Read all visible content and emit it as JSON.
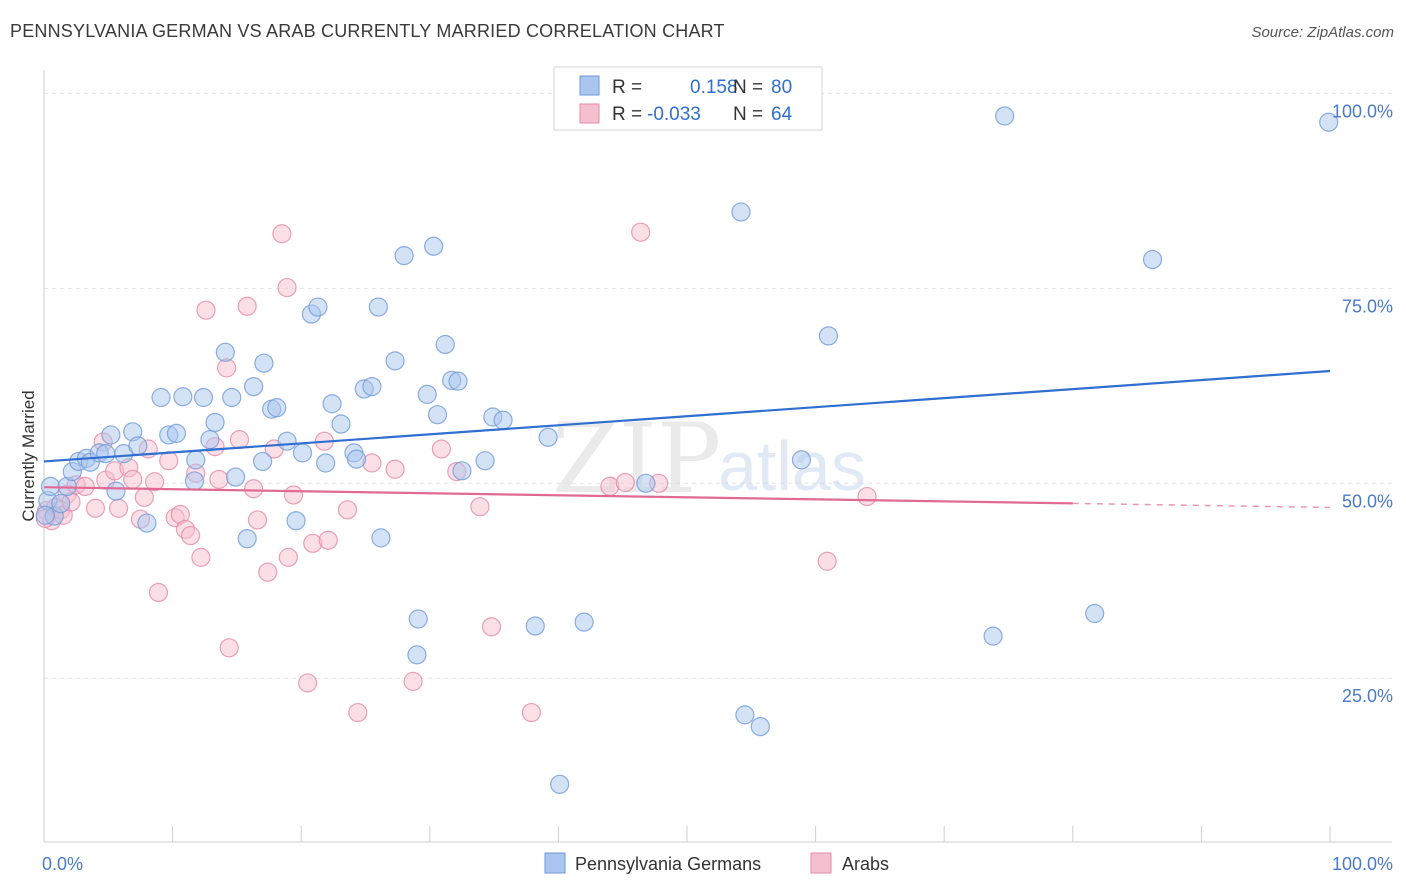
{
  "title": "PENNSYLVANIA GERMAN VS ARAB CURRENTLY MARRIED CORRELATION CHART",
  "source": "Source: ZipAtlas.com",
  "watermark": {
    "zip": "ZIP",
    "atlas": "atlas"
  },
  "colors": {
    "blue_fill": "#a9c6ee",
    "blue_stroke": "#6f9ad9",
    "blue_line": "#2f6fd1",
    "pink_fill": "#f6bfd0",
    "pink_stroke": "#e58aa8",
    "pink_line": "#e06a93",
    "grid": "#e3e3e3",
    "axis_text": "#4a7ac8"
  },
  "stats": {
    "r_label": "R =",
    "n_label": "N =",
    "blue": {
      "r": "0.158",
      "n": "80"
    },
    "pink": {
      "r": "-0.033",
      "n": "64"
    }
  },
  "legend": {
    "blue": "Pennsylvania Germans",
    "pink": "Arabs"
  },
  "chart_data": {
    "type": "scatter",
    "xlabel": "",
    "ylabel": "Currently Married",
    "xlim": [
      0,
      100
    ],
    "ylim": [
      4,
      103
    ],
    "x_tick_labels": [
      {
        "v": 0,
        "t": "0.0%"
      },
      {
        "v": 100,
        "t": "100.0%"
      }
    ],
    "y_tick_labels": [
      {
        "v": 100,
        "t": "100.0%"
      },
      {
        "v": 75,
        "t": "75.0%"
      },
      {
        "v": 50,
        "t": "50.0%"
      },
      {
        "v": 25,
        "t": "25.0%"
      }
    ],
    "grid": true,
    "legend_position": "bottom",
    "series": [
      {
        "name": "Pennsylvania Germans",
        "trend": {
          "x": [
            0,
            100
          ],
          "y": [
            52.8,
            64.4
          ],
          "dashed_from": null
        },
        "points": [
          [
            0.3,
            47.8
          ],
          [
            0.5,
            49.6
          ],
          [
            0.8,
            45.8
          ],
          [
            1.3,
            47.4
          ],
          [
            1.8,
            49.6
          ],
          [
            2.2,
            51.5
          ],
          [
            2.7,
            52.8
          ],
          [
            3.3,
            53.2
          ],
          [
            3.6,
            52.7
          ],
          [
            4.3,
            53.9
          ],
          [
            4.8,
            53.8
          ],
          [
            5.2,
            56.2
          ],
          [
            5.6,
            49.0
          ],
          [
            6.2,
            53.8
          ],
          [
            6.9,
            56.6
          ],
          [
            7.3,
            54.8
          ],
          [
            8.0,
            44.9
          ],
          [
            9.1,
            61.0
          ],
          [
            9.7,
            56.2
          ],
          [
            10.3,
            56.4
          ],
          [
            10.8,
            61.1
          ],
          [
            11.8,
            53.0
          ],
          [
            11.7,
            50.3
          ],
          [
            12.4,
            61.0
          ],
          [
            12.9,
            55.6
          ],
          [
            13.3,
            57.8
          ],
          [
            14.1,
            66.8
          ],
          [
            14.6,
            61.0
          ],
          [
            14.9,
            50.8
          ],
          [
            15.8,
            42.9
          ],
          [
            16.3,
            62.4
          ],
          [
            17.0,
            52.8
          ],
          [
            17.1,
            65.4
          ],
          [
            17.7,
            59.5
          ],
          [
            18.1,
            59.7
          ],
          [
            18.9,
            55.4
          ],
          [
            19.6,
            45.2
          ],
          [
            20.1,
            53.9
          ],
          [
            20.8,
            71.7
          ],
          [
            21.3,
            72.6
          ],
          [
            21.9,
            52.6
          ],
          [
            22.4,
            60.2
          ],
          [
            23.1,
            57.6
          ],
          [
            24.1,
            53.9
          ],
          [
            24.3,
            53.1
          ],
          [
            24.9,
            62.1
          ],
          [
            25.5,
            62.4
          ],
          [
            26.0,
            72.6
          ],
          [
            26.2,
            43.0
          ],
          [
            27.3,
            65.7
          ],
          [
            28.0,
            79.2
          ],
          [
            29.1,
            32.6
          ],
          [
            29.0,
            28.0
          ],
          [
            29.8,
            61.4
          ],
          [
            30.3,
            80.4
          ],
          [
            30.6,
            58.8
          ],
          [
            31.2,
            67.8
          ],
          [
            31.7,
            63.2
          ],
          [
            32.2,
            63.1
          ],
          [
            32.5,
            51.6
          ],
          [
            34.3,
            52.9
          ],
          [
            34.9,
            58.5
          ],
          [
            35.7,
            58.1
          ],
          [
            38.2,
            31.7
          ],
          [
            39.2,
            55.9
          ],
          [
            40.1,
            11.4
          ],
          [
            42.0,
            32.2
          ],
          [
            46.8,
            50.0
          ],
          [
            50.0,
            100.0
          ],
          [
            54.2,
            84.8
          ],
          [
            54.5,
            20.3
          ],
          [
            55.7,
            18.8
          ],
          [
            58.9,
            53.0
          ],
          [
            61.0,
            68.9
          ],
          [
            73.8,
            30.4
          ],
          [
            74.7,
            97.1
          ],
          [
            81.7,
            33.3
          ],
          [
            86.2,
            78.7
          ],
          [
            99.9,
            96.3
          ],
          [
            0.1,
            45.9
          ]
        ]
      },
      {
        "name": "Arabs",
        "trend": {
          "x": [
            0,
            100
          ],
          "y": [
            49.5,
            46.9
          ],
          "dashed_from": 80
        },
        "points": [
          [
            0.2,
            46.5
          ],
          [
            0.6,
            45.2
          ],
          [
            0.9,
            46.9
          ],
          [
            1.3,
            46.6
          ],
          [
            1.5,
            45.9
          ],
          [
            1.8,
            48.6
          ],
          [
            2.1,
            47.6
          ],
          [
            2.5,
            49.8
          ],
          [
            3.2,
            49.6
          ],
          [
            4.0,
            46.8
          ],
          [
            4.6,
            55.3
          ],
          [
            4.8,
            50.4
          ],
          [
            5.5,
            51.6
          ],
          [
            5.8,
            46.8
          ],
          [
            6.6,
            52.0
          ],
          [
            6.9,
            50.5
          ],
          [
            7.5,
            45.4
          ],
          [
            7.8,
            48.2
          ],
          [
            8.1,
            54.4
          ],
          [
            8.6,
            50.2
          ],
          [
            8.9,
            36.0
          ],
          [
            9.7,
            52.9
          ],
          [
            10.2,
            45.6
          ],
          [
            10.6,
            46.0
          ],
          [
            11.0,
            44.1
          ],
          [
            11.4,
            43.3
          ],
          [
            11.8,
            51.3
          ],
          [
            12.2,
            40.5
          ],
          [
            12.6,
            72.2
          ],
          [
            13.3,
            54.7
          ],
          [
            13.6,
            50.5
          ],
          [
            14.2,
            64.8
          ],
          [
            14.4,
            28.9
          ],
          [
            15.2,
            55.6
          ],
          [
            15.8,
            72.7
          ],
          [
            16.3,
            49.3
          ],
          [
            16.6,
            45.3
          ],
          [
            17.4,
            38.6
          ],
          [
            17.9,
            54.4
          ],
          [
            18.5,
            82.0
          ],
          [
            18.9,
            75.1
          ],
          [
            19.0,
            40.5
          ],
          [
            19.4,
            48.5
          ],
          [
            20.5,
            24.4
          ],
          [
            20.9,
            42.3
          ],
          [
            21.8,
            55.4
          ],
          [
            22.1,
            42.7
          ],
          [
            23.6,
            46.6
          ],
          [
            24.4,
            20.6
          ],
          [
            25.5,
            52.6
          ],
          [
            27.3,
            51.8
          ],
          [
            28.7,
            24.6
          ],
          [
            30.9,
            54.4
          ],
          [
            32.1,
            51.5
          ],
          [
            33.9,
            47.0
          ],
          [
            34.8,
            31.6
          ],
          [
            37.9,
            20.6
          ],
          [
            44.0,
            49.6
          ],
          [
            45.2,
            50.1
          ],
          [
            46.4,
            82.2
          ],
          [
            47.8,
            50.0
          ],
          [
            60.9,
            40.0
          ],
          [
            64.0,
            48.3
          ],
          [
            0.1,
            45.5
          ]
        ]
      }
    ]
  }
}
